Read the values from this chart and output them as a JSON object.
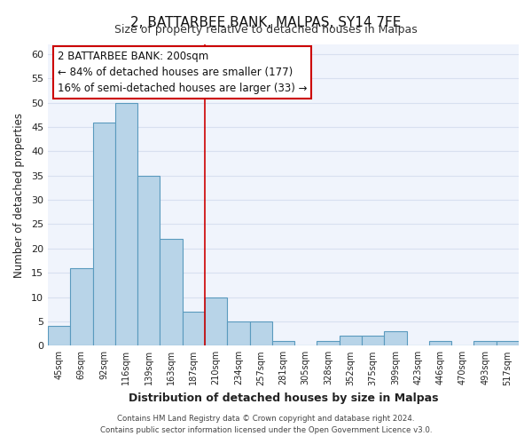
{
  "title": "2, BATTARBEE BANK, MALPAS, SY14 7FE",
  "subtitle": "Size of property relative to detached houses in Malpas",
  "xlabel": "Distribution of detached houses by size in Malpas",
  "ylabel": "Number of detached properties",
  "bar_color": "#b8d4e8",
  "bar_edge_color": "#5a9abe",
  "background_color": "#ffffff",
  "plot_bg_color": "#f0f4fc",
  "grid_color": "#d8e0f0",
  "bins": [
    "45sqm",
    "69sqm",
    "92sqm",
    "116sqm",
    "139sqm",
    "163sqm",
    "187sqm",
    "210sqm",
    "234sqm",
    "257sqm",
    "281sqm",
    "305sqm",
    "328sqm",
    "352sqm",
    "375sqm",
    "399sqm",
    "423sqm",
    "446sqm",
    "470sqm",
    "493sqm",
    "517sqm"
  ],
  "values": [
    4,
    16,
    46,
    50,
    35,
    22,
    7,
    10,
    5,
    5,
    1,
    0,
    1,
    2,
    2,
    3,
    0,
    1,
    0,
    1,
    1
  ],
  "ylim": [
    0,
    62
  ],
  "yticks": [
    0,
    5,
    10,
    15,
    20,
    25,
    30,
    35,
    40,
    45,
    50,
    55,
    60
  ],
  "annotation_title": "2 BATTARBEE BANK: 200sqm",
  "annotation_line1": "← 84% of detached houses are smaller (177)",
  "annotation_line2": "16% of semi-detached houses are larger (33) →",
  "property_line_x": 6.5,
  "footer1": "Contains HM Land Registry data © Crown copyright and database right 2024.",
  "footer2": "Contains public sector information licensed under the Open Government Licence v3.0."
}
